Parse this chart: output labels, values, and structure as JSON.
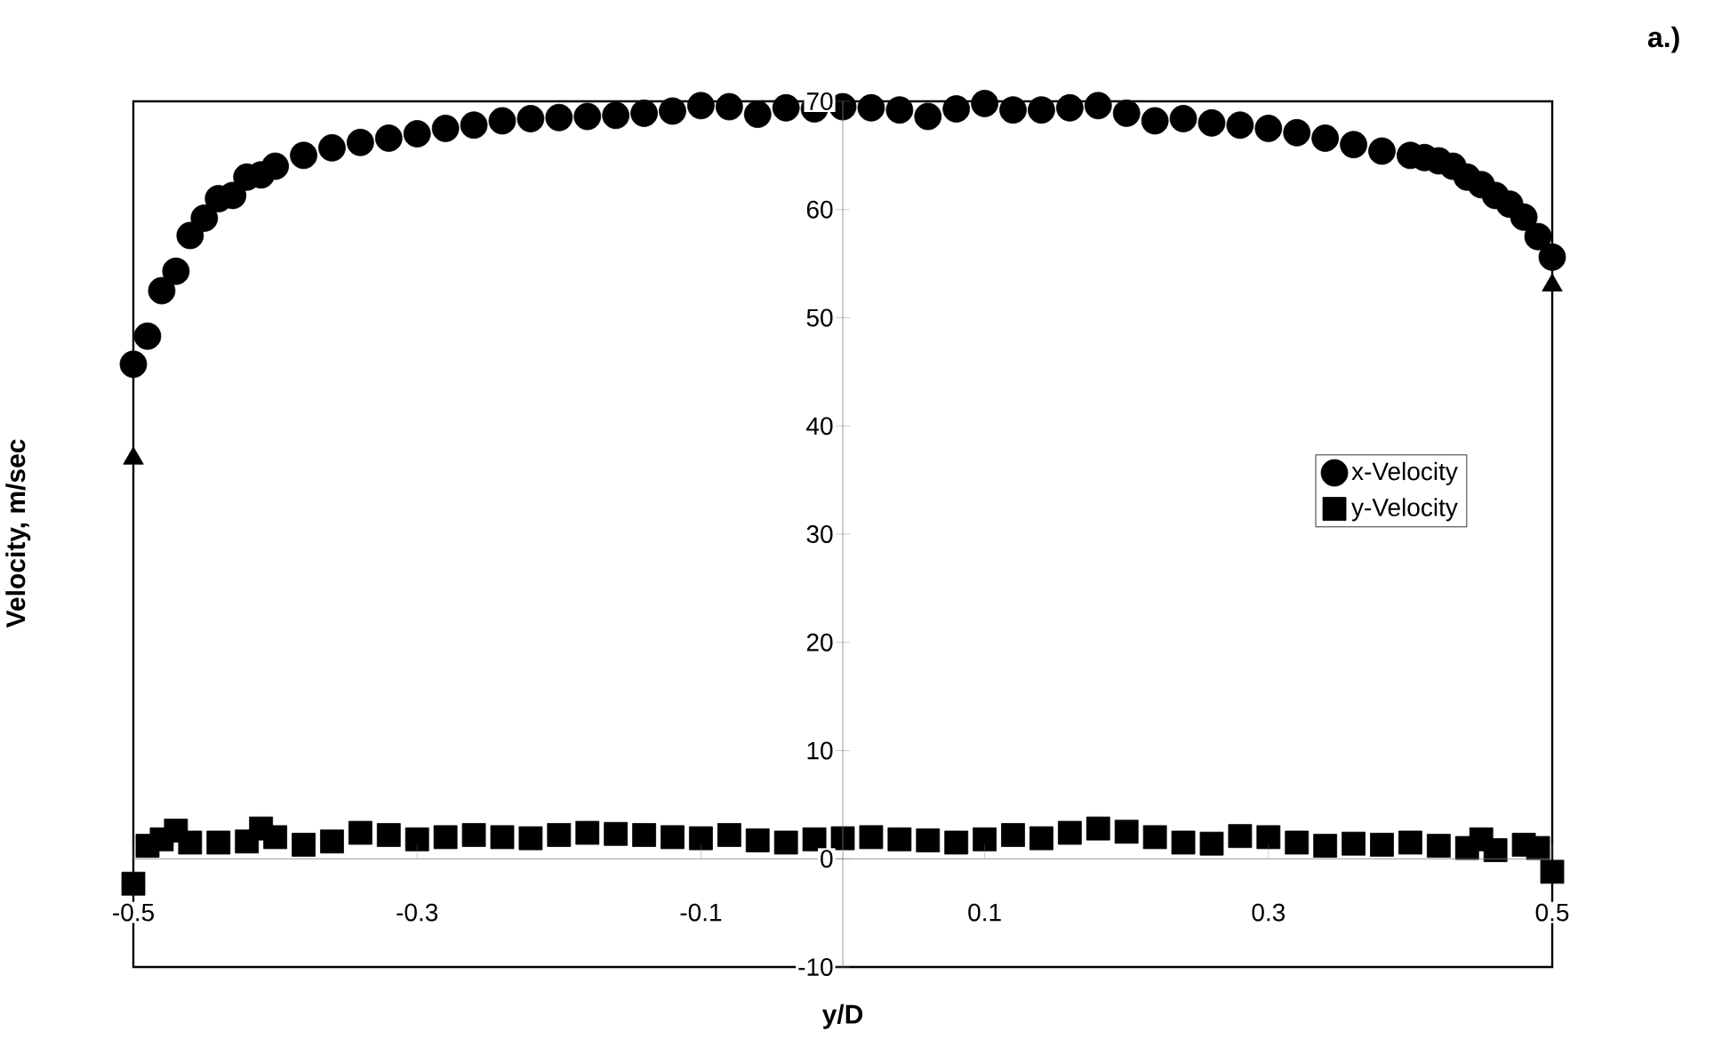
{
  "chart_data": {
    "type": "scatter",
    "title": "a.)",
    "xlabel": "y/D",
    "ylabel": "Velocity, m/sec",
    "xlim": [
      -0.5,
      0.5
    ],
    "ylim": [
      -10,
      70
    ],
    "xticks": [
      -0.5,
      -0.3,
      -0.1,
      0.1,
      0.3,
      0.5
    ],
    "yticks": [
      -10,
      0,
      10,
      20,
      30,
      40,
      50,
      60,
      70
    ],
    "legend": "right",
    "series": [
      {
        "name": "x-Velocity",
        "color": "#000000",
        "marker": "circle",
        "x": [
          -0.5,
          -0.49,
          -0.48,
          -0.47,
          -0.46,
          -0.45,
          -0.44,
          -0.43,
          -0.42,
          -0.41,
          -0.4,
          -0.38,
          -0.36,
          -0.34,
          -0.32,
          -0.3,
          -0.28,
          -0.26,
          -0.24,
          -0.22,
          -0.2,
          -0.18,
          -0.16,
          -0.14,
          -0.12,
          -0.1,
          -0.08,
          -0.06,
          -0.04,
          -0.02,
          0,
          0.02,
          0.04,
          0.06,
          0.08,
          0.1,
          0.12,
          0.14,
          0.16,
          0.18,
          0.2,
          0.22,
          0.24,
          0.26,
          0.28,
          0.3,
          0.32,
          0.34,
          0.36,
          0.38,
          0.4,
          0.41,
          0.42,
          0.43,
          0.44,
          0.45,
          0.46,
          0.47,
          0.48,
          0.49,
          0.5
        ],
        "values": [
          45.7,
          48.3,
          52.5,
          54.3,
          57.6,
          59.2,
          61.0,
          61.3,
          63.0,
          63.2,
          64.0,
          65.0,
          65.7,
          66.2,
          66.6,
          67.0,
          67.5,
          67.8,
          68.2,
          68.4,
          68.5,
          68.6,
          68.7,
          68.9,
          69.1,
          69.6,
          69.5,
          68.8,
          69.4,
          69.3,
          69.5,
          69.4,
          69.2,
          68.6,
          69.3,
          69.8,
          69.2,
          69.2,
          69.4,
          69.6,
          68.9,
          68.2,
          68.4,
          68.0,
          67.8,
          67.5,
          67.1,
          66.6,
          66.0,
          65.4,
          65.0,
          64.8,
          64.5,
          64.0,
          63.0,
          62.3,
          61.3,
          60.5,
          59.3,
          57.5,
          55.6
        ]
      },
      {
        "name": "y-Velocity",
        "color": "#000000",
        "marker": "square",
        "x": [
          -0.5,
          -0.49,
          -0.48,
          -0.47,
          -0.46,
          -0.44,
          -0.42,
          -0.41,
          -0.4,
          -0.38,
          -0.36,
          -0.34,
          -0.32,
          -0.3,
          -0.28,
          -0.26,
          -0.24,
          -0.22,
          -0.2,
          -0.18,
          -0.16,
          -0.14,
          -0.12,
          -0.1,
          -0.08,
          -0.06,
          -0.04,
          -0.02,
          0,
          0.02,
          0.04,
          0.06,
          0.08,
          0.1,
          0.12,
          0.14,
          0.16,
          0.18,
          0.2,
          0.22,
          0.24,
          0.26,
          0.28,
          0.3,
          0.32,
          0.34,
          0.36,
          0.38,
          0.4,
          0.42,
          0.44,
          0.45,
          0.46,
          0.48,
          0.49,
          0.5
        ],
        "values": [
          -2.3,
          1.2,
          1.8,
          2.6,
          1.5,
          1.5,
          1.6,
          2.8,
          2.0,
          1.3,
          1.6,
          2.4,
          2.2,
          1.8,
          2.0,
          2.2,
          2.0,
          1.9,
          2.2,
          2.4,
          2.3,
          2.2,
          2.0,
          1.9,
          2.2,
          1.7,
          1.5,
          1.8,
          1.9,
          2.0,
          1.8,
          1.7,
          1.5,
          1.8,
          2.2,
          1.9,
          2.4,
          2.8,
          2.5,
          2.0,
          1.5,
          1.4,
          2.1,
          2.0,
          1.5,
          1.2,
          1.4,
          1.3,
          1.5,
          1.2,
          1.0,
          1.8,
          0.8,
          1.3,
          1.0,
          -1.2
        ]
      },
      {
        "color": "#000000",
        "marker": "triangle",
        "x": [
          -0.5,
          0.5
        ],
        "values": [
          37,
          53
        ]
      }
    ]
  }
}
